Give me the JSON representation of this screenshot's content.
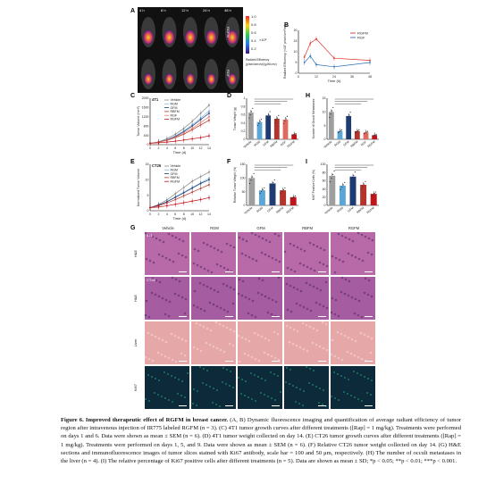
{
  "panel_letters": [
    "A",
    "B",
    "C",
    "D",
    "E",
    "F",
    "G",
    "H",
    "I"
  ],
  "panelA": {
    "timepoints": [
      "4 h",
      "8 h",
      "12 h",
      "24 h",
      "48 h"
    ],
    "rows": [
      "RGFM",
      "RGF"
    ],
    "colorbar_ticks": [
      "1.0",
      "0.8",
      "0.6",
      "0.4",
      "0.2"
    ],
    "colorbar_unit": "×10⁸",
    "colorbar_label": "Radiant Efficiency (p/sec/cm²/sr)/(µW/cm²)"
  },
  "chart_data": [
    {
      "id": "B",
      "type": "line",
      "ylabel": "Radiant Efficiency (×10⁷ p/sec/cm²/sr)",
      "xlabel": "Time (h)",
      "x_ticks": [
        0,
        12,
        24,
        36,
        48
      ],
      "y_ticks": [
        0,
        5,
        10,
        15,
        20
      ],
      "xlim": [
        0,
        48
      ],
      "ylim": [
        0,
        20
      ],
      "legend": [
        "RGFM",
        "RGF"
      ],
      "series": [
        {
          "name": "RGFM",
          "color": "#d9362b",
          "x": [
            4,
            8,
            12,
            24,
            48
          ],
          "y": [
            7.5,
            14,
            16,
            7,
            6
          ]
        },
        {
          "name": "RGF",
          "color": "#2a6fb5",
          "x": [
            4,
            8,
            12,
            24,
            48
          ],
          "y": [
            5,
            8,
            4,
            3,
            5
          ]
        }
      ]
    },
    {
      "id": "C",
      "type": "line",
      "cell_line": "4T1",
      "ylabel": "Tumor Volume (mm³)",
      "xlabel": "Time (d)",
      "x_ticks": [
        0,
        2,
        4,
        6,
        8,
        10,
        12,
        14
      ],
      "y_ticks": [
        0,
        400,
        800,
        1200,
        1600,
        2000
      ],
      "xlim": [
        0,
        14
      ],
      "ylim": [
        0,
        2000
      ],
      "series": [
        {
          "name": "Vehicle",
          "color": "#888888",
          "x": [
            0,
            2,
            4,
            6,
            8,
            10,
            12,
            14
          ],
          "y": [
            60,
            120,
            260,
            450,
            700,
            1000,
            1350,
            1700
          ]
        },
        {
          "name": "RGM",
          "color": "#7fb9e0",
          "x": [
            0,
            2,
            4,
            6,
            8,
            10,
            12,
            14
          ],
          "y": [
            60,
            110,
            220,
            380,
            600,
            850,
            1150,
            1450
          ]
        },
        {
          "name": "GFM",
          "color": "#1f3b73",
          "x": [
            0,
            2,
            4,
            6,
            8,
            10,
            12,
            14
          ],
          "y": [
            60,
            110,
            200,
            350,
            560,
            800,
            1080,
            1350
          ]
        },
        {
          "name": "RBFM",
          "color": "#b5332a",
          "x": [
            0,
            2,
            4,
            6,
            8,
            10,
            12,
            14
          ],
          "y": [
            60,
            100,
            180,
            300,
            450,
            640,
            850,
            1050
          ]
        },
        {
          "name": "RGF",
          "color": "#e67c73",
          "x": [
            0,
            2,
            4,
            6,
            8,
            10,
            12,
            14
          ],
          "y": [
            60,
            100,
            190,
            320,
            500,
            700,
            950,
            1200
          ]
        },
        {
          "name": "RGFM",
          "color": "#c0141b",
          "x": [
            0,
            2,
            4,
            6,
            8,
            10,
            12,
            14
          ],
          "y": [
            60,
            80,
            110,
            150,
            200,
            250,
            300,
            380
          ]
        }
      ]
    },
    {
      "id": "D",
      "type": "bar",
      "ylabel": "Tumor Weight (g)",
      "categories": [
        "Vehicle",
        "RGM",
        "GFM",
        "RBFM",
        "RGF",
        "RGFM"
      ],
      "values": [
        0.65,
        0.42,
        0.58,
        0.5,
        0.48,
        0.12
      ],
      "colors": [
        "#9e9e9e",
        "#5aa6d6",
        "#1f3b73",
        "#b5332a",
        "#e06a60",
        "#c0141b"
      ],
      "y_ticks": [
        0,
        0.2,
        0.4,
        0.6,
        0.8,
        1.0
      ],
      "ylim": [
        0,
        1.0
      ]
    },
    {
      "id": "E",
      "type": "line",
      "cell_line": "CT26",
      "ylabel": "Normalized Tumor Volume",
      "xlabel": "Time (d)",
      "x_ticks": [
        0,
        2,
        4,
        6,
        8,
        10,
        12,
        14
      ],
      "y_ticks": [
        0,
        5,
        10,
        15
      ],
      "xlim": [
        0,
        14
      ],
      "ylim": [
        0,
        15
      ],
      "series": [
        {
          "name": "Vehicle",
          "color": "#888888",
          "x": [
            0,
            2,
            4,
            6,
            8,
            10,
            12,
            14
          ],
          "y": [
            1,
            2,
            3.5,
            5.5,
            7.5,
            9.5,
            11,
            12.5
          ]
        },
        {
          "name": "RGM",
          "color": "#7fb9e0",
          "x": [
            0,
            2,
            4,
            6,
            8,
            10,
            12,
            14
          ],
          "y": [
            1,
            1.8,
            3,
            4.5,
            6,
            7.5,
            9,
            10.5
          ]
        },
        {
          "name": "GFM",
          "color": "#1f3b73",
          "x": [
            0,
            2,
            4,
            6,
            8,
            10,
            12,
            14
          ],
          "y": [
            1,
            1.8,
            2.9,
            4.3,
            5.8,
            7.3,
            8.8,
            10
          ]
        },
        {
          "name": "RBFM",
          "color": "#b5332a",
          "x": [
            0,
            2,
            4,
            6,
            8,
            10,
            12,
            14
          ],
          "y": [
            1,
            1.6,
            2.5,
            3.6,
            4.8,
            6,
            7.2,
            8.4
          ]
        },
        {
          "name": "RGFM",
          "color": "#c0141b",
          "x": [
            0,
            2,
            4,
            6,
            8,
            10,
            12,
            14
          ],
          "y": [
            1,
            1.2,
            1.6,
            2.1,
            2.6,
            3.1,
            3.6,
            4.2
          ]
        }
      ]
    },
    {
      "id": "F",
      "type": "bar",
      "ylabel": "Relative Tumor Weight (%)",
      "categories": [
        "Vehicle",
        "RGM",
        "GFM",
        "RBFM",
        "RGFM"
      ],
      "values": [
        100,
        55,
        80,
        55,
        30
      ],
      "colors": [
        "#9e9e9e",
        "#5aa6d6",
        "#1f3b73",
        "#b5332a",
        "#c0141b"
      ],
      "y_ticks": [
        0,
        50,
        100,
        150
      ],
      "ylim": [
        0,
        150
      ]
    },
    {
      "id": "H",
      "type": "bar",
      "ylabel": "Number of Occult Metastases",
      "categories": [
        "Vehicle",
        "RGM",
        "GFM",
        "RBFM",
        "RGF",
        "RGFM"
      ],
      "values": [
        10,
        3,
        8.5,
        3,
        2.5,
        1.5
      ],
      "colors": [
        "#9e9e9e",
        "#5aa6d6",
        "#1f3b73",
        "#b5332a",
        "#e06a60",
        "#c0141b"
      ],
      "y_ticks": [
        0,
        5,
        10,
        15
      ],
      "ylim": [
        0,
        15
      ]
    },
    {
      "id": "I",
      "type": "bar",
      "ylabel": "Ki67 Positive Cells (%)",
      "categories": [
        "Vehicle",
        "RGM",
        "GFM",
        "RBFM",
        "RGFM"
      ],
      "values": [
        72,
        48,
        70,
        50,
        28
      ],
      "colors": [
        "#9e9e9e",
        "#5aa6d6",
        "#1f3b73",
        "#b5332a",
        "#c0141b"
      ],
      "y_ticks": [
        0,
        20,
        40,
        60,
        80,
        100
      ],
      "ylim": [
        0,
        100
      ]
    }
  ],
  "panelG": {
    "columns": [
      "Vehicle",
      "RGM",
      "GFM",
      "RBFM",
      "RGFM"
    ],
    "row_labels": [
      "H&E",
      "H&E",
      "Liver",
      "Ki67"
    ],
    "row_tags": [
      "4T1",
      "CT26"
    ],
    "row_colors": [
      "#b86aa8",
      "#a55ca0",
      "#e6a7a8",
      "#0d2a3a"
    ]
  },
  "caption": {
    "lead": "Figure 6. Improved therapeutic effect of RGFM in breast cancer.",
    "body": " (A, B) Dynamic fluorescence imaging and quantification of average radiant efficiency of tumor region after intravenous injection of IR775 labeled RGFM (n = 3). (C) 4T1 tumor growth curves after different treatments ([Rap] = 1 mg/kg). Treatments were performed on days 1 and 6. Data were shown as mean ± SEM (n = 6). (D) 4T1 tumor weight collected on day 14. (E) CT26 tumor growth curves after different treatments ([Rap] = 1 mg/kg). Treatments were performed on days 1, 5, and 9. Data were shown as mean ± SEM (n = 6). (F) Relative CT26 tumor weight collected on day 14. (G) H&E sections and immunofluorescence images of tumor slices stained with Ki67 antibody, scale bar = 100 and 50 μm, respectively. (H) The number of occult metastases in the liver (n = 4). (I) The relative percentage of Ki67 positive cells after different treatments (n = 5). Data are shown as mean ± SD; *p < 0.05; **p < 0.01; ***p < 0.001."
  }
}
